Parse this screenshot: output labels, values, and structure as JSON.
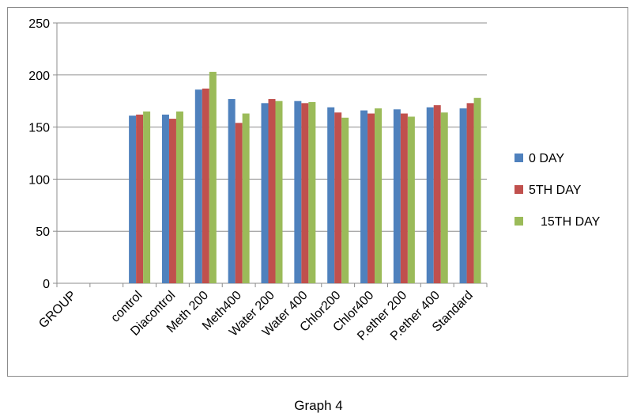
{
  "chart_data": {
    "type": "bar",
    "categories": [
      "GROUP",
      "",
      "control",
      "Diacontrol",
      "Meth 200",
      "Meth400",
      "Water 200",
      "Water 400",
      "Chlor200",
      "Chlor400",
      "P.ether 200",
      "P.ether 400",
      "Standard"
    ],
    "series": [
      {
        "name": "0 DAY",
        "color": "#4f81bd",
        "values": [
          null,
          null,
          161,
          162,
          186,
          177,
          173,
          175,
          169,
          166,
          167,
          169,
          168
        ]
      },
      {
        "name": "5TH DAY",
        "color": "#c0504d",
        "values": [
          null,
          null,
          162,
          158,
          187,
          154,
          177,
          173,
          164,
          163,
          163,
          171,
          173
        ]
      },
      {
        "name": "15TH DAY",
        "color": "#9bbb59",
        "values": [
          null,
          null,
          165,
          165,
          203,
          163,
          175,
          174,
          159,
          168,
          160,
          164,
          178
        ]
      }
    ],
    "ylim": [
      0,
      250
    ],
    "yticks": [
      0,
      50,
      100,
      150,
      200,
      250
    ],
    "grid": true,
    "legend": "right",
    "title": "",
    "xlabel": "",
    "ylabel": ""
  },
  "caption": "Graph 4"
}
